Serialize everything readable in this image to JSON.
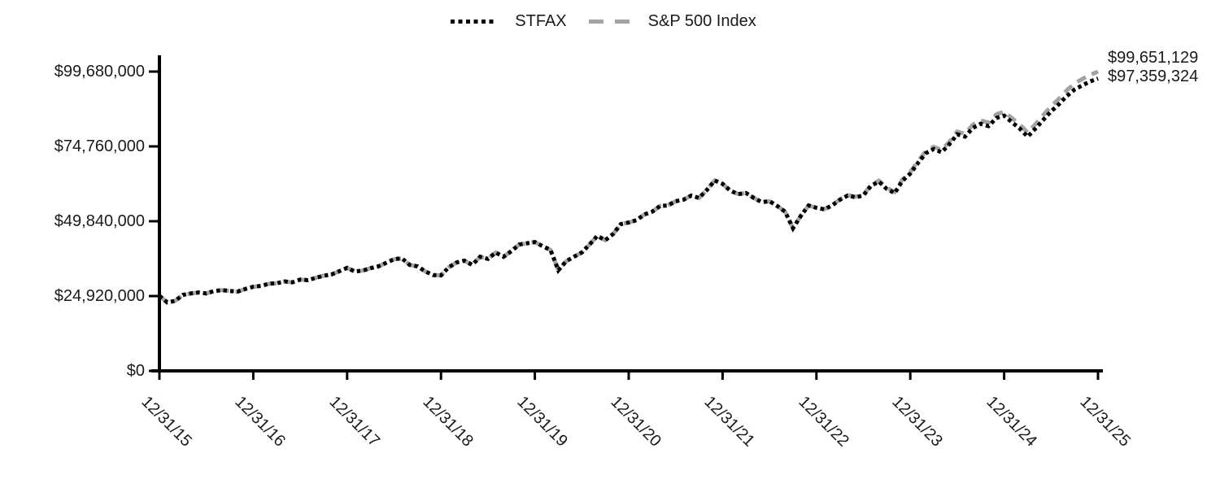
{
  "legend": {
    "items": [
      {
        "label": "STFAX",
        "marker": "dotted-line",
        "color": "#000000"
      },
      {
        "label": "S&P 500 Index",
        "marker": "dashed-line",
        "color": "#a3a3a3"
      }
    ]
  },
  "chart_data": {
    "type": "line",
    "title": "",
    "xlabel": "",
    "ylabel": "",
    "x_unit": "month",
    "x_start": "12/31/15",
    "x_end": "12/31/25",
    "points_per_series": 121,
    "x_tick_labels": [
      "12/31/15",
      "12/31/16",
      "12/31/17",
      "12/31/18",
      "12/31/19",
      "12/31/20",
      "12/31/21",
      "12/31/22",
      "12/31/23",
      "12/31/24",
      "12/31/25"
    ],
    "x_tick_month_indices": [
      0,
      12,
      24,
      36,
      48,
      60,
      72,
      84,
      96,
      108,
      120
    ],
    "y_tick_labels": [
      "$0",
      "$24,920,000",
      "$49,840,000",
      "$74,760,000",
      "$99,680,000"
    ],
    "y_tick_values": [
      0,
      24920000,
      49840000,
      74760000,
      99680000
    ],
    "ylim": [
      0,
      99680000
    ],
    "grid": false,
    "legend_position": "top-center",
    "series": [
      {
        "name": "STFAX",
        "color": "#000000",
        "style": "dotted",
        "final_value": 97359324,
        "final_label": "$97,359,324",
        "values": [
          25000000,
          22800000,
          23300000,
          25300000,
          25800000,
          26100000,
          25800000,
          26600000,
          26900000,
          26600000,
          26400000,
          27300000,
          28000000,
          28300000,
          29000000,
          29200000,
          29800000,
          29500000,
          30400000,
          30200000,
          31000000,
          31700000,
          32100000,
          33200000,
          34300000,
          33100000,
          33400000,
          34200000,
          34800000,
          36000000,
          37200000,
          37500000,
          35300000,
          34800000,
          33100000,
          31900000,
          31800000,
          34500000,
          36100000,
          36700000,
          35300000,
          38000000,
          37300000,
          39400000,
          38000000,
          39900000,
          42100000,
          42500000,
          42900000,
          41500000,
          40300000,
          33500000,
          36500000,
          38000000,
          39400000,
          42100000,
          45000000,
          43500000,
          45600000,
          48900000,
          49400000,
          50200000,
          52100000,
          53000000,
          54900000,
          55100000,
          56500000,
          57000000,
          58400000,
          57600000,
          60300000,
          63400000,
          62300000,
          60000000,
          58900000,
          59200000,
          57600000,
          56200000,
          56500000,
          54900000,
          53000000,
          47500000,
          51600000,
          55100000,
          54300000,
          53800000,
          55100000,
          57000000,
          58400000,
          57800000,
          58400000,
          61700000,
          63000000,
          60600000,
          59200000,
          63300000,
          65700000,
          69300000,
          72500000,
          73900000,
          72800000,
          75500000,
          78800000,
          78000000,
          80900000,
          82300000,
          81500000,
          84200000,
          85000000,
          82800000,
          80700000,
          78000000,
          80700000,
          83600000,
          86400000,
          88800000,
          91500000,
          93700000,
          95100000,
          96400000,
          97359324
        ]
      },
      {
        "name": "S&P 500 Index",
        "color": "#a3a3a3",
        "style": "dashed",
        "final_value": 99651129,
        "final_label": "$99,651,129",
        "values": [
          25000000,
          22800000,
          23300000,
          25300000,
          25800000,
          26100000,
          25800000,
          26600000,
          26900000,
          26600000,
          26400000,
          27300000,
          28000000,
          28300000,
          29000000,
          29200000,
          29800000,
          29500000,
          30400000,
          30200000,
          31000000,
          31700000,
          32100000,
          33200000,
          34300000,
          33100000,
          33400000,
          34200000,
          34800000,
          36000000,
          37200000,
          37500000,
          35300000,
          34800000,
          33100000,
          31900000,
          31800000,
          34500000,
          36100000,
          36700000,
          35300000,
          38000000,
          37300000,
          39400000,
          38000000,
          39900000,
          42100000,
          42500000,
          42900000,
          41500000,
          40300000,
          33500000,
          36500000,
          38000000,
          39400000,
          42100000,
          45000000,
          43500000,
          45600000,
          48900000,
          49400000,
          50200000,
          52100000,
          53000000,
          54900000,
          55100000,
          56500000,
          57000000,
          58400000,
          57600000,
          60300000,
          63400000,
          62300000,
          60000000,
          58900000,
          59200000,
          57600000,
          56200000,
          56500000,
          54900000,
          53000000,
          47500000,
          51600000,
          55100000,
          54300000,
          53835000,
          55172000,
          57112000,
          58552000,
          57989000,
          58629000,
          61982000,
          63329000,
          60956000,
          59586000,
          63755000,
          66215000,
          69888000,
          73163000,
          74624000,
          73560000,
          76338000,
          79726000,
          78967000,
          81956000,
          83428000,
          82670000,
          85464000,
          86332000,
          84151000,
          82070000,
          79375000,
          82175000,
          85183000,
          88092000,
          90597000,
          93411000,
          95718000,
          97211000,
          98602000,
          99651129
        ]
      }
    ]
  }
}
